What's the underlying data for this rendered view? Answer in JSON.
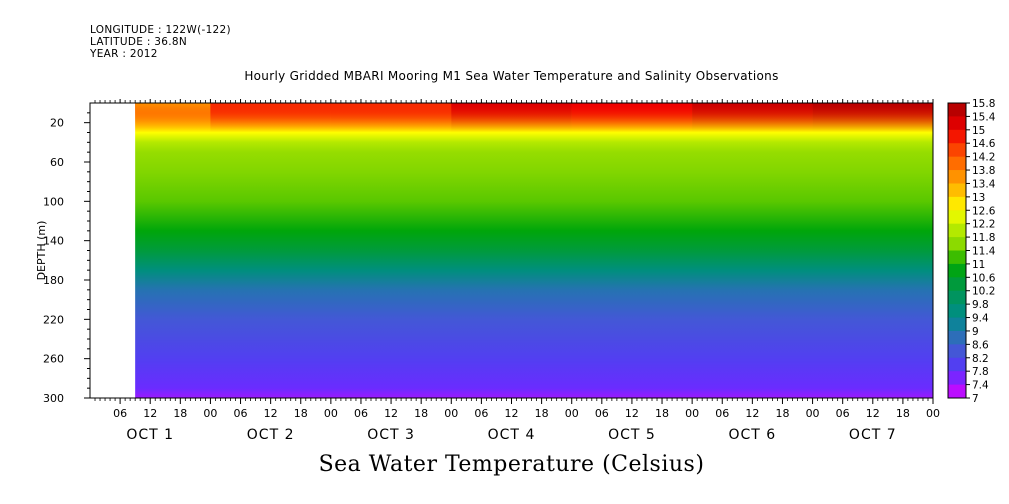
{
  "header": {
    "longitude": "LONGITUDE : 122W(-122)",
    "latitude": "LATITUDE : 36.8N",
    "year": "YEAR : 2012"
  },
  "chart_data": {
    "type": "heatmap",
    "title": "Hourly Gridded MBARI Mooring M1 Sea Water Temperature and Salinity Observations",
    "xlabel": "Sea Water Temperature (Celsius)",
    "ylabel": "DEPTH (m)",
    "ylim": [
      300,
      0
    ],
    "y_inverted": true,
    "y_ticks": [
      20,
      60,
      100,
      140,
      180,
      220,
      260,
      300
    ],
    "x_hour_ticks": [
      "06",
      "12",
      "18",
      "00",
      "06",
      "12",
      "18",
      "00",
      "06",
      "12",
      "18",
      "00",
      "06",
      "12",
      "18",
      "00",
      "06",
      "12",
      "18",
      "00",
      "06",
      "12",
      "18",
      "00",
      "06",
      "12",
      "18",
      "00"
    ],
    "x_day_labels": [
      "OCT 1",
      "OCT 2",
      "OCT 3",
      "OCT 4",
      "OCT 5",
      "OCT 6",
      "OCT 7"
    ],
    "x_range_hours": [
      0,
      168
    ],
    "data_start_hour": 9,
    "colorbar_levels": [
      "15.8",
      "15.4",
      "15",
      "14.6",
      "14.2",
      "13.8",
      "13.4",
      "13",
      "12.6",
      "12.2",
      "11.8",
      "11.4",
      "11",
      "10.6",
      "10.2",
      "9.8",
      "9.4",
      "9",
      "8.6",
      "8.2",
      "7.8",
      "7.4",
      "7"
    ],
    "profile": {
      "depths_m": [
        0,
        10,
        20,
        30,
        40,
        50,
        70,
        100,
        130,
        150,
        170,
        190,
        220,
        260,
        290,
        300
      ],
      "temperature_c": [
        15.0,
        14.4,
        13.4,
        12.6,
        12.0,
        11.7,
        11.5,
        11.3,
        10.9,
        10.4,
        9.6,
        8.9,
        8.4,
        8.0,
        7.7,
        7.4
      ]
    },
    "surface_temperature_by_day": [
      {
        "day": "OCT 1",
        "temp_c": 13.6
      },
      {
        "day": "OCT 2",
        "temp_c": 14.6
      },
      {
        "day": "OCT 3",
        "temp_c": 14.6
      },
      {
        "day": "OCT 4",
        "temp_c": 15.2
      },
      {
        "day": "OCT 5",
        "temp_c": 15.0
      },
      {
        "day": "OCT 6",
        "temp_c": 15.4
      },
      {
        "day": "OCT 7",
        "temp_c": 15.6
      }
    ],
    "colors": {
      "c15_8": "#a50000",
      "c15": "#f00000",
      "c14_2": "#ff5a00",
      "c13_4": "#ffa500",
      "c12_6": "#ffff00",
      "c12_2": "#c8f000",
      "c11_4": "#78d200",
      "c11": "#00a800",
      "c10_2": "#009650",
      "c9_4": "#008c8c",
      "c8_6": "#3c64c8",
      "c7_8": "#5a32ff",
      "c7": "#dc00ff"
    }
  }
}
